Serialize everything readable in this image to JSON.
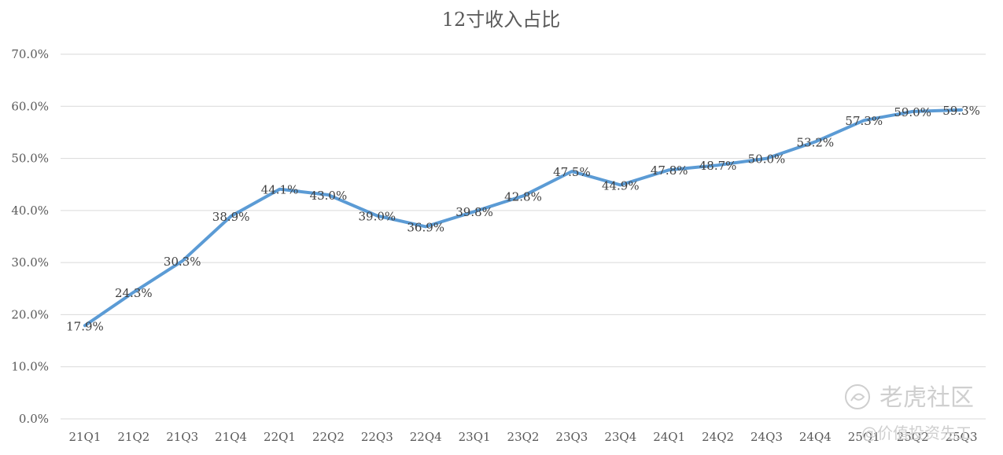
{
  "chart_data": {
    "type": "line",
    "title": "12寸收入占比",
    "xlabel": "",
    "ylabel": "",
    "categories": [
      "21Q1",
      "21Q2",
      "21Q3",
      "21Q4",
      "22Q1",
      "22Q2",
      "22Q3",
      "22Q4",
      "23Q1",
      "23Q2",
      "23Q3",
      "23Q4",
      "24Q1",
      "24Q2",
      "24Q3",
      "24Q4",
      "25Q1",
      "25Q2",
      "25Q3"
    ],
    "series": [
      {
        "values": [
          17.9,
          24.3,
          30.3,
          38.9,
          44.1,
          43.0,
          39.0,
          36.9,
          39.8,
          42.8,
          47.5,
          44.9,
          47.8,
          48.7,
          50.0,
          53.2,
          57.3,
          59.0,
          59.3
        ],
        "data_labels": [
          "17.9%",
          "24.3%",
          "30.3%",
          "38.9%",
          "44.1%",
          "43.0%",
          "39.0%",
          "36.9%",
          "39.8%",
          "42.8%",
          "47.5%",
          "44.9%",
          "47.8%",
          "48.7%",
          "50.0%",
          "53.2%",
          "57.3%",
          "59.0%",
          "59.3%"
        ],
        "color": "#5b9bd5"
      }
    ],
    "ylim": [
      0,
      70
    ],
    "yticks": [
      0,
      10,
      20,
      30,
      40,
      50,
      60,
      70
    ],
    "ytick_labels": [
      "0.0%",
      "10.0%",
      "20.0%",
      "30.0%",
      "40.0%",
      "50.0%",
      "60.0%",
      "70.0%"
    ],
    "grid": true,
    "legend": "none"
  },
  "watermark": {
    "brand": "老虎社区",
    "author": "@价值投资先工"
  }
}
